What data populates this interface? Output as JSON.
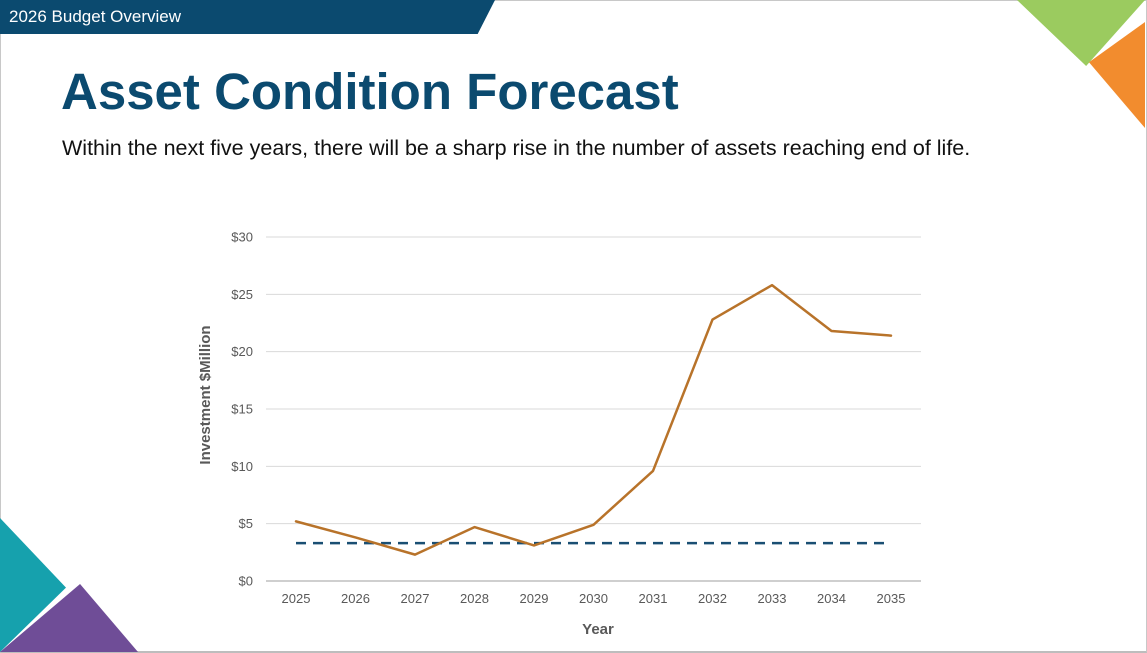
{
  "header": {
    "label": "2026 Budget Overview"
  },
  "slide": {
    "title": "Asset Condition Forecast",
    "subtitle": "Within the next five years, there will be a sharp rise in the number of assets reaching end of life."
  },
  "colors": {
    "header_bg": "#0b4a6f",
    "title": "#0b4a6f",
    "series_line": "#b8732a",
    "baseline_dashed": "#1a4f73",
    "deco_green": "#9bcb5f",
    "deco_orange": "#f28c2e",
    "deco_teal": "#16a1ad",
    "deco_purple": "#6f4d97"
  },
  "chart_data": {
    "type": "line",
    "xlabel": "Year",
    "ylabel": "Investment $Million",
    "ylim": [
      0,
      30
    ],
    "yticks": [
      0,
      5,
      10,
      15,
      20,
      25,
      30
    ],
    "ytick_labels": [
      "$0",
      "$5",
      "$10",
      "$15",
      "$20",
      "$25",
      "$30"
    ],
    "categories": [
      "2025",
      "2026",
      "2027",
      "2028",
      "2029",
      "2030",
      "2031",
      "2032",
      "2033",
      "2034",
      "2035"
    ],
    "grid": true,
    "legend": "none",
    "series": [
      {
        "style": "solid",
        "values": [
          5.2,
          3.8,
          2.3,
          4.7,
          3.1,
          4.9,
          9.6,
          22.8,
          25.8,
          21.8,
          21.4
        ]
      },
      {
        "style": "dashed",
        "values": [
          3.3,
          3.3,
          3.3,
          3.3,
          3.3,
          3.3,
          3.3,
          3.3,
          3.3,
          3.3,
          3.3
        ]
      }
    ]
  }
}
